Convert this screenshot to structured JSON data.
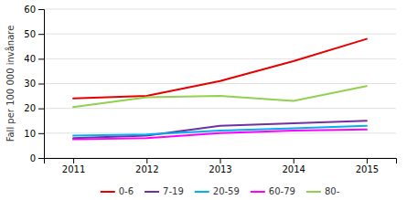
{
  "chart_data": {
    "type": "line",
    "x": [
      2011,
      2012,
      2013,
      2014,
      2015
    ],
    "series": [
      {
        "name": "0-6",
        "color": "#e60000",
        "values": [
          24,
          25,
          31,
          39,
          48
        ]
      },
      {
        "name": "7-19",
        "color": "#7030a0",
        "values": [
          8,
          9,
          13,
          14,
          15
        ]
      },
      {
        "name": "20-59",
        "color": "#00b0f0",
        "values": [
          9,
          9.5,
          11,
          12,
          13
        ]
      },
      {
        "name": "60-79",
        "color": "#ff00ff",
        "values": [
          7.5,
          8,
          10,
          11,
          11.5
        ]
      },
      {
        "name": "80-",
        "color": "#92d050",
        "values": [
          20.5,
          24.5,
          25,
          23,
          29
        ]
      }
    ],
    "ylabel": "Fall per 100 000 invånare",
    "xlim": [
      2010.6,
      2015.4
    ],
    "xticks": [
      2011,
      2012,
      2013,
      2014,
      2015
    ],
    "ylim": [
      0,
      60
    ],
    "yticks": [
      0,
      10,
      20,
      30,
      40,
      50,
      60
    ],
    "grid": true,
    "legend": "bottom"
  }
}
